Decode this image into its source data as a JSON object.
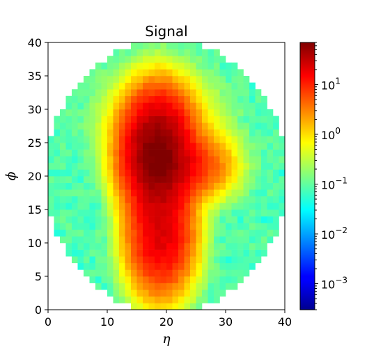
{
  "chart_data": {
    "type": "heatmap",
    "title": "Signal",
    "xlabel": "η",
    "ylabel": "ϕ",
    "xlim": [
      0,
      40
    ],
    "ylim": [
      0,
      40
    ],
    "grid": false,
    "bins": 40,
    "xticks": [
      "0",
      "10",
      "20",
      "30",
      "40"
    ],
    "yticks": [
      "0",
      "5",
      "10",
      "15",
      "20",
      "25",
      "30",
      "35",
      "40"
    ],
    "colorbar": {
      "scale": "log",
      "colormap": "jet",
      "range": [
        0.0003,
        70
      ],
      "tick_values": [
        0.001,
        0.01,
        0.1,
        1,
        10
      ],
      "tick_labels": [
        {
          "base": "10",
          "exp": "−3"
        },
        {
          "base": "10",
          "exp": "−2"
        },
        {
          "base": "10",
          "exp": "−1"
        },
        {
          "base": "10",
          "exp": "0"
        },
        {
          "base": "10",
          "exp": "1"
        }
      ]
    },
    "structure": {
      "background_level": 0.08,
      "blobs": [
        {
          "center": [
            18.5,
            23.5
          ],
          "sigma": [
            2.8,
            4.2
          ],
          "peak": 70
        },
        {
          "center": [
            22.0,
            21.5
          ],
          "sigma": [
            4.0,
            2.3
          ],
          "peak": 10
        },
        {
          "center": [
            19.0,
            11.5
          ],
          "sigma": [
            2.7,
            4.5
          ],
          "peak": 22
        },
        {
          "center": [
            19.0,
            17.5
          ],
          "sigma": [
            2.5,
            3.0
          ],
          "peak": 2.5
        },
        {
          "center": [
            26.0,
            22.0
          ],
          "sigma": [
            3.0,
            3.0
          ],
          "peak": 1.5
        },
        {
          "center": [
            19.0,
            28.0
          ],
          "sigma": [
            5.0,
            4.0
          ],
          "peak": 1.5
        }
      ],
      "dark_corner_cells": [
        [
          0,
          38
        ],
        [
          1,
          38
        ],
        [
          2,
          38
        ],
        [
          0,
          37
        ],
        [
          38,
          39
        ],
        [
          39,
          39
        ],
        [
          37,
          38
        ]
      ]
    }
  }
}
